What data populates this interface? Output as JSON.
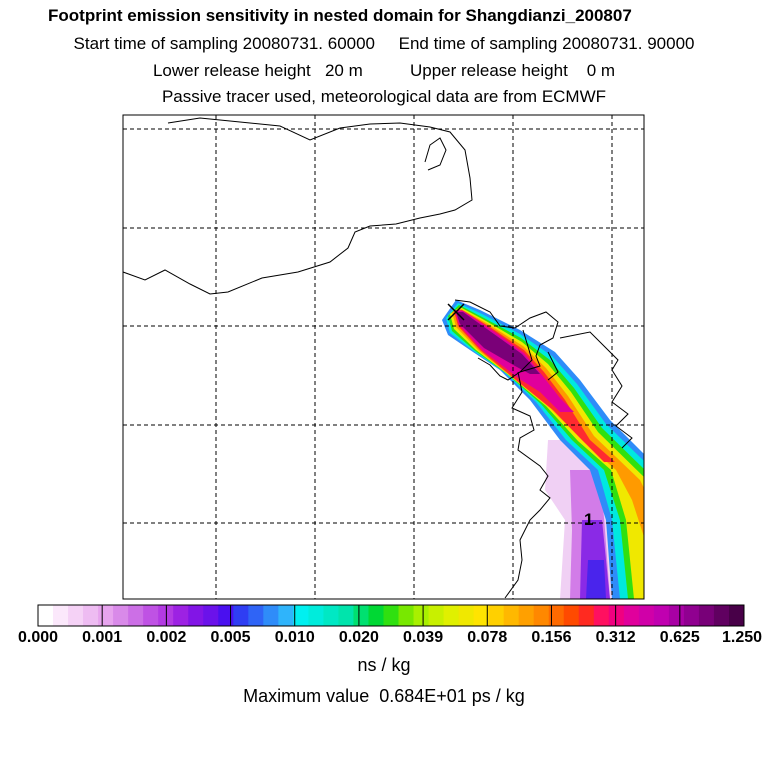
{
  "header": {
    "title": "Footprint emission sensitivity in nested domain for Shangdianzi_200807",
    "start_label": "Start time of sampling",
    "start_value": "20080731. 60000",
    "end_label": "End time of sampling",
    "end_value": "20080731. 90000",
    "lower_label": "Lower release height",
    "lower_value": "20 m",
    "upper_label": "Upper release height",
    "upper_value": "0 m",
    "tracer_note": "Passive tracer used, meteorological data are from ECMWF"
  },
  "map": {
    "release_marker": "x-marker-icon",
    "contour_label": "1"
  },
  "colorbar": {
    "ticks": [
      "0.000",
      "0.001",
      "0.002",
      "0.005",
      "0.010",
      "0.020",
      "0.039",
      "0.078",
      "0.156",
      "0.312",
      "0.625",
      "1.250"
    ],
    "colors": [
      "#ffffff",
      "#fbe8fb",
      "#f5d2f6",
      "#eebcf2",
      "#e7a4ee",
      "#d98ae9",
      "#cc6fe6",
      "#bf52e4",
      "#b33ae3",
      "#9d22e3",
      "#8215e6",
      "#6b12ea",
      "#4a10ef",
      "#2f3ef3",
      "#2f64f6",
      "#2f8cf9",
      "#2fb4fb",
      "#00f0f0",
      "#00ecdc",
      "#00e8c4",
      "#00e4ac",
      "#00e070",
      "#00d834",
      "#30e010",
      "#78e800",
      "#a8f000",
      "#c8f000",
      "#e0f000",
      "#f0e800",
      "#ffe400",
      "#ffd000",
      "#ffb800",
      "#ffa000",
      "#ff8800",
      "#ff6a00",
      "#ff4a00",
      "#ff2a20",
      "#ff1060",
      "#f00080",
      "#e0009c",
      "#d000a8",
      "#c000b0",
      "#a800a4",
      "#900090",
      "#780078",
      "#600060",
      "#480048"
    ],
    "unit": "ns / kg",
    "max_value_text": "Maximum value  0.684E+01 ps / kg"
  }
}
